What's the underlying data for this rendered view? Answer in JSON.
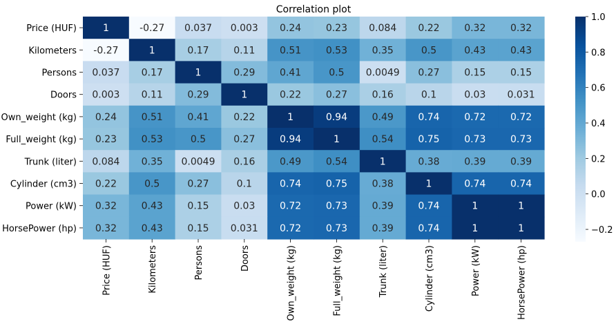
{
  "chart_data": {
    "type": "heatmap",
    "title": "Correlation plot",
    "xlabel": "",
    "ylabel": "",
    "labels": [
      "Price (HUF)",
      "Kilometers",
      "Persons",
      "Doors",
      "Own_weight (kg)",
      "Full_weight (kg)",
      "Trunk (liter)",
      "Cylinder (cm3)",
      "Power (kW)",
      "HorsePower (hp)"
    ],
    "values": [
      [
        1,
        -0.27,
        0.037,
        0.003,
        0.24,
        0.23,
        0.084,
        0.22,
        0.32,
        0.32
      ],
      [
        -0.27,
        1,
        0.17,
        0.11,
        0.51,
        0.53,
        0.35,
        0.5,
        0.43,
        0.43
      ],
      [
        0.037,
        0.17,
        1,
        0.29,
        0.41,
        0.5,
        0.0049,
        0.27,
        0.15,
        0.15
      ],
      [
        0.003,
        0.11,
        0.29,
        1,
        0.22,
        0.27,
        0.16,
        0.1,
        0.03,
        0.031
      ],
      [
        0.24,
        0.51,
        0.41,
        0.22,
        1,
        0.94,
        0.49,
        0.74,
        0.72,
        0.72
      ],
      [
        0.23,
        0.53,
        0.5,
        0.27,
        0.94,
        1,
        0.54,
        0.75,
        0.73,
        0.73
      ],
      [
        0.084,
        0.35,
        0.0049,
        0.16,
        0.49,
        0.54,
        1,
        0.38,
        0.39,
        0.39
      ],
      [
        0.22,
        0.5,
        0.27,
        0.1,
        0.74,
        0.75,
        0.38,
        1,
        0.74,
        0.74
      ],
      [
        0.32,
        0.43,
        0.15,
        0.03,
        0.72,
        0.73,
        0.39,
        0.74,
        1,
        1
      ],
      [
        0.32,
        0.43,
        0.15,
        0.031,
        0.72,
        0.73,
        0.39,
        0.74,
        1,
        1
      ]
    ],
    "colormap": "Blues",
    "colorbar": {
      "min": -0.27,
      "max": 1.0,
      "ticks": [
        -0.2,
        0.0,
        0.2,
        0.4,
        0.6,
        0.8,
        1.0
      ],
      "tick_labels": [
        "−0.2",
        "0.0",
        "0.2",
        "0.4",
        "0.6",
        "0.8",
        "1.0"
      ]
    },
    "annotated": true,
    "grid": false
  }
}
